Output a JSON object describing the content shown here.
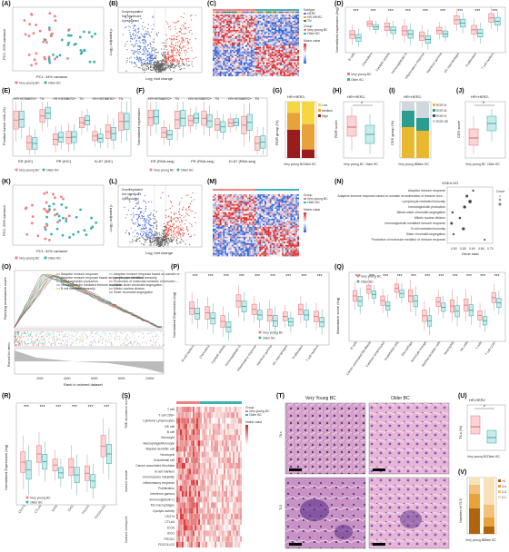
{
  "colors": {
    "young": "#f08080",
    "older": "#40b0b0",
    "up": "#e74c3c",
    "down": "#4a6fd8",
    "ns": "#9a9a9a",
    "hmHigh": "#d62728",
    "hmLow": "#2c5fd8"
  },
  "panels": {
    "A": {
      "label": "(A)",
      "xlabel": "PC1: 34% variance",
      "ylabel": "PC2: 20% variance",
      "legend": [
        "Very young BC",
        "Older BC"
      ]
    },
    "B": {
      "label": "(B)",
      "legend": [
        "Downregulated",
        "Not significant",
        "Upregulated"
      ],
      "xlabel": "Log₂ fold change",
      "ylabel": "-Log₁₀ adjusted p"
    },
    "C": {
      "label": "(C)",
      "legend_title": "Subtype",
      "subtypes": [
        "HER2",
        "HR-/HER2-",
        "TN"
      ],
      "group_title": "Group",
      "groups": [
        "Very young BC",
        "Older BC"
      ],
      "scale_title": "Matrix value"
    },
    "D": {
      "label": "(D)",
      "ylabel": "Normalized expression (log)",
      "categories": [
        "B cells",
        "Chemokine",
        "Cytolytic activity",
        "Immunoglobulin G",
        "Inflammatory response",
        "Interferon gamma",
        "M1 macrophages",
        "Proliferation",
        "T cell markers"
      ],
      "legend": [
        "Very young BC",
        "Older BC"
      ]
    },
    "E": {
      "label": "(E)",
      "ylabel": "Positive tumor cells (%)",
      "groups": [
        "ER (IHC)",
        "PR (IHC)",
        "Ki-67 (IHC)"
      ],
      "top": [
        "HR+HER2-",
        "HER2+",
        "TN"
      ],
      "legend": [
        "Very young BC",
        "Older BC"
      ]
    },
    "F": {
      "label": "(F)",
      "ylabel": "Normalized expression",
      "groups": [
        "ER (RNA-seq)",
        "PR (RNA-seq)",
        "Ki-67 (RNA-seq)"
      ],
      "legend": [
        "Very young BC",
        "Older BC"
      ]
    },
    "G": {
      "label": "(G)",
      "title": "HR+HER2-",
      "ylabel": "ROR group (%)",
      "legend": [
        "Low",
        "Medium",
        "High"
      ],
      "x": [
        "Very young BC",
        "Older BC"
      ],
      "stack_young": [
        20,
        30,
        50
      ],
      "stack_older": [
        40,
        45,
        15
      ]
    },
    "H": {
      "label": "(H)",
      "title": "HR+HER2-",
      "ylabel": "ROR score",
      "x": [
        "Very young BC",
        "Older BC"
      ]
    },
    "I": {
      "label": "(I)",
      "title": "HR+HER2-",
      "ylabel": "CES group (%)",
      "legend": [
        "ROR-N",
        "ROR-M",
        "ROR-H",
        "ROR-SE"
      ],
      "x": [
        "Very young BC",
        "Older BC"
      ]
    },
    "J": {
      "label": "(J)",
      "title": "HR+HER2-",
      "ylabel": "CES score",
      "x": [
        "Very young BC",
        "Older BC"
      ]
    },
    "K": {
      "label": "(K)",
      "xlabel": "PC1: 42% variance",
      "ylabel": "PC2: 20% variance",
      "legend": [
        "Very young BC",
        "Older BC"
      ]
    },
    "L": {
      "label": "(L)",
      "legend": [
        "Downregulated",
        "Not significant",
        "Upregulated"
      ],
      "xlabel": "Log₂ fold change",
      "ylabel": "-Log₁₀ adjusted p"
    },
    "M": {
      "label": "(M)",
      "group_title": "Group",
      "groups": [
        "Very young BC",
        "Older BC"
      ],
      "scale_title": "Matrix value"
    },
    "N": {
      "label": "(N)",
      "title": "GSEA GO",
      "terms": [
        "Adaptive immune response",
        "Adaptive immune response based on somatic recombination of immune receptors built from immunoglobulin superfamily domains",
        "Lymphocyte mediated immunity",
        "Immunoglobulin production",
        "Mitotic sister chromatid segregation",
        "Mitotic nuclear division",
        "Immunoglobulin mediated immune response",
        "B cell mediated immunity",
        "Sister chromatid segregation",
        "Production of molecular mediator of immune response"
      ],
      "xlabel": "Gene ratio",
      "xticks": [
        "0.50",
        "0.55",
        "0.60",
        "0.65",
        "0.70",
        "0.75"
      ],
      "size_title": "Count"
    },
    "O": {
      "label": "(O)",
      "ylabel": "Running enrichment score",
      "ylabel2": "Ranked list metric",
      "xlabel": "Rank in ordered dataset",
      "xticks": [
        "2000",
        "4000",
        "6000",
        "8000",
        "10000"
      ],
      "legend_left": [
        "Adaptive immune response",
        "Adaptive immune response based on somatic recombination…",
        "Immunoglobulin production",
        "Immunoglobulin mediated immune response",
        "B cell mediated immunity"
      ],
      "legend_right": [
        "Adaptive immune response based on somatic recombination of immune receptors built from immunoglobulin superfamily domains",
        "Lymphocyte mediated immunity",
        "Production of molecular mediator of immune response",
        "Mitotic sister chromatid segregation",
        "Mitotic nuclear division",
        "Sister chromatid segregation"
      ]
    },
    "P": {
      "label": "(P)",
      "ylabel": "Normalized Expression (log)",
      "categories": [
        "B cell markers",
        "Chemokine",
        "Cytolytic activity",
        "Immunoglobulin G",
        "Inflammatory response",
        "Interferon gamma",
        "M1 macrophages",
        "Proliferation",
        "T cell markers"
      ],
      "legend": [
        "Very young BC",
        "Older BC"
      ]
    },
    "Q": {
      "label": "(Q)",
      "ylabel": "Abundance score (log)",
      "categories": [
        "B cells",
        "Cancer associated fibroblasts",
        "Cytotoxic lymphocytes",
        "Endothelial cells",
        "Macrophage",
        "Monocytic lineage",
        "Myeloid dendritic cells",
        "Neutrophils",
        "NK cells",
        "T cells",
        "T cell CD8+"
      ],
      "legend": [
        "Very young BC",
        "Older BC"
      ]
    },
    "R": {
      "label": "(R)",
      "ylabel": "Normalized Expression (log)",
      "categories": [
        "CD274",
        "CTLA4",
        "ICOS",
        "IDO1",
        "PDCD1",
        "PDCD1LG2"
      ],
      "legend": [
        "Very young BC",
        "Older BC"
      ]
    },
    "S": {
      "label": "(S)",
      "rows": [
        "T cell",
        "T cell CD8+",
        "Cytotoxic Lymphocytes",
        "NK cell",
        "B cell",
        "Monocyte",
        "Macrophage/Monocyte",
        "Myeloid dendritic cell",
        "Neutrophil",
        "Endothelial cell",
        "Cancer associated fibroblast",
        "B cell markers",
        "Chromosome instability",
        "Inflammatory response",
        "Proliferation",
        "Interferon gamma",
        "Immunoglobulin G",
        "M1 macrophages",
        "Cytolytic activity",
        "CD274",
        "CTLA4",
        "ICOS",
        "IDO1",
        "PDCD1",
        "PDCD1LG2"
      ],
      "side_top": "TME abundance score",
      "side_mid": "Immune module",
      "side_bot": "Immune checkpoint",
      "group_title": "Group",
      "groups": [
        "Very young BC",
        "Older BC"
      ],
      "scale_title": "Matrix value"
    },
    "T": {
      "label": "(T)",
      "col1": "Very Young BC",
      "col2": "Older BC",
      "row1": "TILs",
      "row2": "TLS"
    },
    "U": {
      "label": "(U)",
      "title": "HR-HER2",
      "ylabel": "TILs (%)",
      "x": [
        "Very young BC",
        "Older BC"
      ]
    },
    "V": {
      "label": "(V)",
      "ylabel": "Number of TLS",
      "legend": [
        ">4",
        "3-4",
        "2-3",
        "0-1"
      ],
      "x": [
        "Very young BC",
        "Older BC"
      ]
    }
  },
  "sig": "*"
}
